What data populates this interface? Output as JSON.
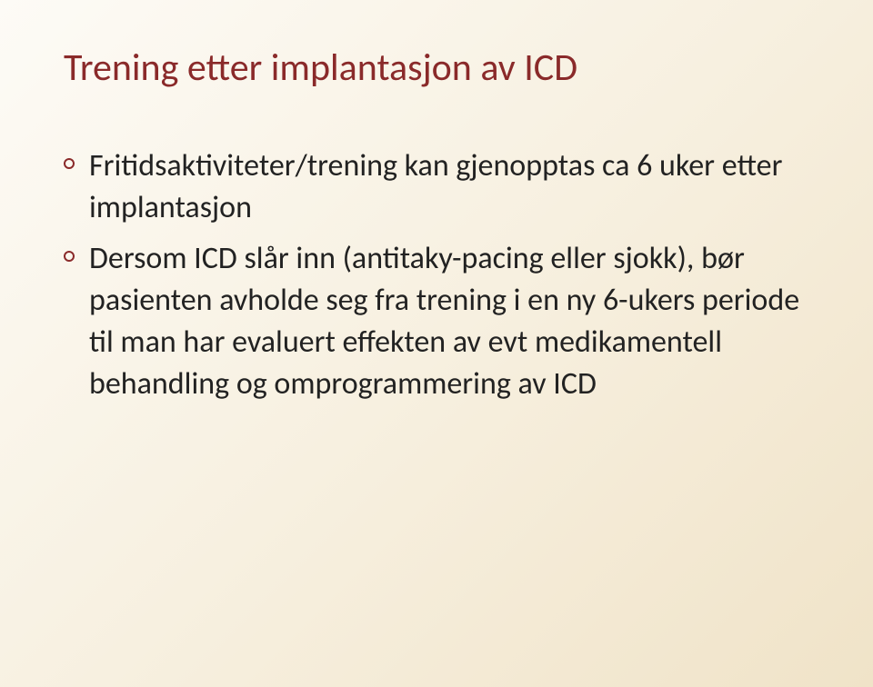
{
  "slide": {
    "title": "Trening etter implantasjon av ICD",
    "title_color": "#8a2a2a",
    "title_fontsize": 42,
    "bullet_marker_color": "#8a2a2a",
    "body_text_color": "#222222",
    "body_fontsize": 34,
    "background_gradient": [
      "#fdfbf6",
      "#f7f0e0",
      "#f0e3c8"
    ],
    "bullets": [
      "Fritidsaktiviteter/trening kan gjenopptas ca 6 uker etter implantasjon",
      "Dersom ICD slår inn (antitaky-pacing eller sjokk), bør pasienten avholde seg fra trening i en ny 6-ukers periode til man har evaluert effekten av evt medikamentell behandling og omprogrammering av ICD"
    ]
  }
}
